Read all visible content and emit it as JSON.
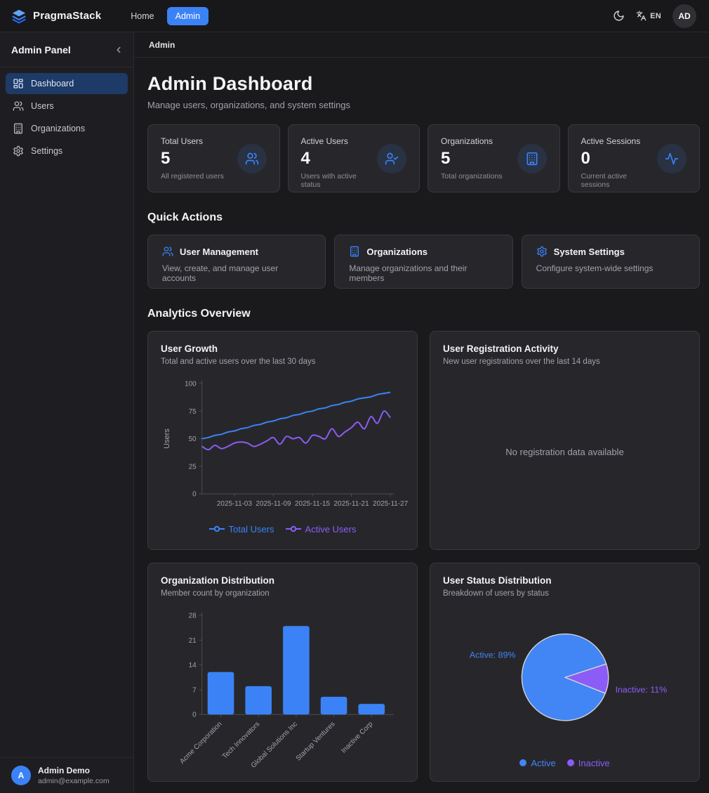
{
  "navbar": {
    "brand": "PragmaStack",
    "links": [
      {
        "label": "Home",
        "active": false
      },
      {
        "label": "Admin",
        "active": true
      }
    ],
    "language": "EN",
    "avatar_initials": "AD"
  },
  "sidebar": {
    "title": "Admin Panel",
    "items": [
      {
        "label": "Dashboard",
        "icon": "dashboard-icon",
        "active": true
      },
      {
        "label": "Users",
        "icon": "users-icon",
        "active": false
      },
      {
        "label": "Organizations",
        "icon": "building-icon",
        "active": false
      },
      {
        "label": "Settings",
        "icon": "gear-icon",
        "active": false
      }
    ],
    "user": {
      "initial": "A",
      "name": "Admin Demo",
      "email": "admin@example.com"
    }
  },
  "breadcrumb": "Admin",
  "page": {
    "title": "Admin Dashboard",
    "subtitle": "Manage users, organizations, and system settings"
  },
  "stats": [
    {
      "label": "Total Users",
      "value": "5",
      "sub": "All registered users",
      "icon": "users-icon"
    },
    {
      "label": "Active Users",
      "value": "4",
      "sub": "Users with active status",
      "icon": "user-check-icon"
    },
    {
      "label": "Organizations",
      "value": "5",
      "sub": "Total organizations",
      "icon": "building-icon"
    },
    {
      "label": "Active Sessions",
      "value": "0",
      "sub": "Current active sessions",
      "icon": "activity-icon"
    }
  ],
  "quick_actions": {
    "heading": "Quick Actions",
    "cards": [
      {
        "title": "User Management",
        "description": "View, create, and manage user accounts",
        "icon": "users-icon"
      },
      {
        "title": "Organizations",
        "description": "Manage organizations and their members",
        "icon": "building-icon"
      },
      {
        "title": "System Settings",
        "description": "Configure system-wide settings",
        "icon": "gear-icon"
      }
    ]
  },
  "analytics_heading": "Analytics Overview",
  "colors": {
    "accent_blue": "#3b82f6",
    "accent_purple": "#8b5cf6"
  },
  "chart_data": [
    {
      "type": "line",
      "title": "User Growth",
      "subtitle": "Total and active users over the last 30 days",
      "ylabel": "Users",
      "ylim": [
        0,
        100
      ],
      "yticks": [
        0,
        25,
        50,
        75,
        100
      ],
      "xtick_labels": [
        "2025-11-03",
        "2025-11-09",
        "2025-11-15",
        "2025-11-21",
        "2025-11-27"
      ],
      "xtick_indices": [
        5,
        11,
        17,
        23,
        29
      ],
      "grid": false,
      "legend_position": "bottom",
      "series": [
        {
          "name": "Total Users",
          "color": "#3b82f6",
          "values": [
            50,
            51,
            53,
            54,
            56,
            57,
            59,
            60,
            62,
            63,
            65,
            66,
            68,
            69,
            71,
            72,
            74,
            75,
            77,
            78,
            80,
            81,
            83,
            84,
            86,
            87,
            88,
            90,
            91,
            92
          ]
        },
        {
          "name": "Active Users",
          "color": "#8b5cf6",
          "values": [
            43,
            40,
            44,
            41,
            43,
            46,
            47,
            46,
            43,
            45,
            48,
            51,
            45,
            52,
            50,
            51,
            46,
            53,
            52,
            50,
            59,
            52,
            56,
            60,
            65,
            59,
            70,
            64,
            75,
            69
          ]
        }
      ]
    },
    {
      "type": "empty",
      "title": "User Registration Activity",
      "subtitle": "New user registrations over the last 14 days",
      "empty_text": "No registration data available"
    },
    {
      "type": "bar",
      "title": "Organization Distribution",
      "subtitle": "Member count by organization",
      "categories": [
        "Acme Corporation",
        "Tech Innovators",
        "Global Solutions Inc",
        "Startup Ventures",
        "Inactive Corp"
      ],
      "values": [
        12,
        8,
        25,
        5,
        3
      ],
      "ylim": [
        0,
        28
      ],
      "yticks": [
        0,
        7,
        14,
        21,
        28
      ],
      "bar_color": "#3b82f6",
      "grid": false
    },
    {
      "type": "pie",
      "title": "User Status Distribution",
      "subtitle": "Breakdown of users by status",
      "slices": [
        {
          "label": "Active",
          "pct": 89,
          "color": "#4285f4",
          "callout": "Active: 89%"
        },
        {
          "label": "Inactive",
          "pct": 11,
          "color": "#8b5cf6",
          "callout": "Inactive: 11%"
        }
      ],
      "legend_position": "bottom"
    }
  ]
}
